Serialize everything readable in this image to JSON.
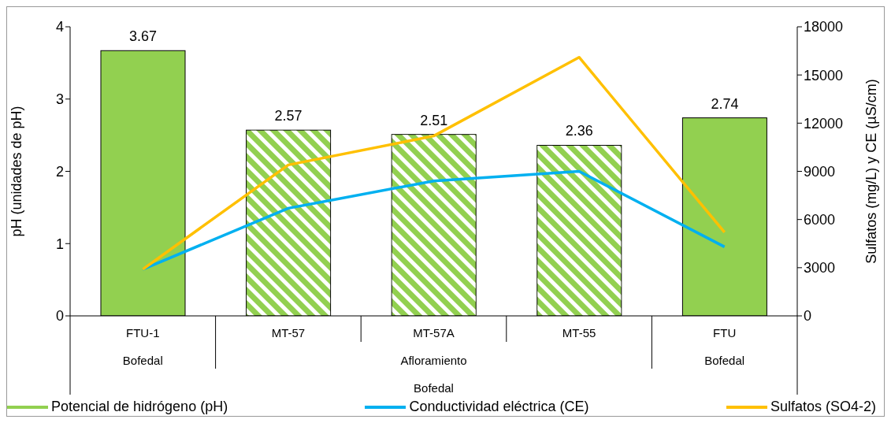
{
  "chart_data": {
    "type": "bar",
    "categories": [
      "FTU-1",
      "MT-57",
      "MT-57A",
      "MT-55",
      "FTU"
    ],
    "ylabel": "pH (unidades de pH)",
    "y2label": "Sulfatos (mg/L) y CE (µS/cm)",
    "ylim": [
      0,
      4
    ],
    "yticks": [
      0,
      1,
      2,
      3,
      4
    ],
    "y2lim": [
      0,
      18000
    ],
    "y2ticks": [
      0,
      3000,
      6000,
      9000,
      12000,
      15000,
      18000
    ],
    "annotations": [
      "Bofedal",
      "Afloramiento",
      "Bofedal",
      "Bofedal"
    ],
    "legend": "bottom",
    "marker": "none",
    "series": [
      {
        "name": "Potencial de hidrógeno (pH)",
        "color": "#92d050",
        "values": [
          3.67,
          2.57,
          2.51,
          2.36,
          2.74
        ],
        "value_labels": [
          "3.67",
          "2.57",
          "2.51",
          "2.36",
          "2.74"
        ]
      },
      {
        "name": "Conductividad eléctrica (CE)",
        "type": "line",
        "axis": "y2",
        "color": "#00b0f0",
        "values": [
          2900,
          6700,
          8400,
          9000,
          4300
        ]
      },
      {
        "name": "Sulfatos (SO4-2)",
        "type": "line",
        "axis": "y2",
        "color": "#ffc000",
        "values": [
          2900,
          9400,
          11200,
          16100,
          5200
        ]
      }
    ]
  }
}
